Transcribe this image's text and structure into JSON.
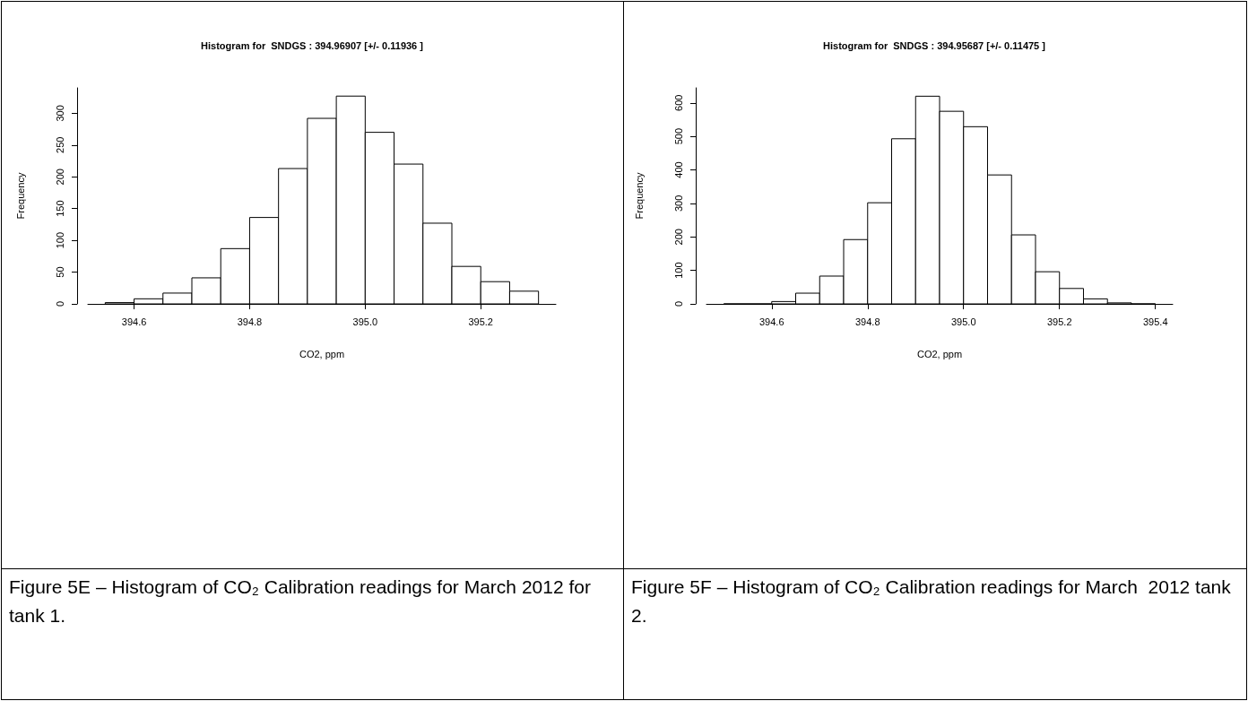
{
  "chart_data": [
    {
      "type": "histogram",
      "title": "Histogram for  SNDGS : 394.96907 [+/- 0.11936 ]",
      "xlabel": "CO2, ppm",
      "ylabel": "Frequency",
      "color": "#ffffff",
      "bins": [
        394.55,
        394.6,
        394.65,
        394.7,
        394.75,
        394.8,
        394.85,
        394.9,
        394.95,
        395.0,
        395.05,
        395.1,
        395.15,
        395.2,
        395.25,
        395.3
      ],
      "values": [
        2,
        8,
        17,
        41,
        87,
        136,
        213,
        292,
        327,
        270,
        220,
        127,
        59,
        35,
        20
      ],
      "xlim": [
        394.52,
        395.33
      ],
      "xticks": [
        394.6,
        394.8,
        {
          "value": 395,
          "label": "395.0"
        },
        395.2
      ],
      "ylim": [
        0,
        340
      ],
      "yticks": [
        0,
        50,
        100,
        150,
        200,
        250,
        300
      ],
      "annotations": [
        "Figure 5E – Histogram of CO₂ Calibration readings for March 2012 for tank 1."
      ]
    },
    {
      "type": "histogram",
      "title": "Histogram for  SNDGS : 394.95687 [+/- 0.11475 ]",
      "xlabel": "CO2, ppm",
      "ylabel": "Frequency",
      "color": "#ffffff",
      "bins": [
        394.5,
        394.55,
        394.6,
        394.65,
        394.7,
        394.75,
        394.8,
        394.85,
        394.9,
        394.95,
        395.0,
        395.05,
        395.1,
        395.15,
        395.2,
        395.25,
        395.3,
        395.35,
        395.4
      ],
      "values": [
        0,
        0,
        7,
        32,
        83,
        192,
        302,
        493,
        620,
        575,
        529,
        385,
        206,
        96,
        46,
        15,
        3,
        0
      ],
      "xlim": [
        394.464,
        395.436
      ],
      "xticks": [
        394.6,
        394.8,
        {
          "value": 395,
          "label": "395.0"
        },
        395.2,
        395.4
      ],
      "ylim": [
        0,
        645
      ],
      "yticks": [
        0,
        100,
        200,
        300,
        400,
        500,
        600
      ],
      "annotations": [
        "Figure 5F – Histogram of CO₂ Calibration readings for March  2012 tank 2."
      ]
    }
  ]
}
